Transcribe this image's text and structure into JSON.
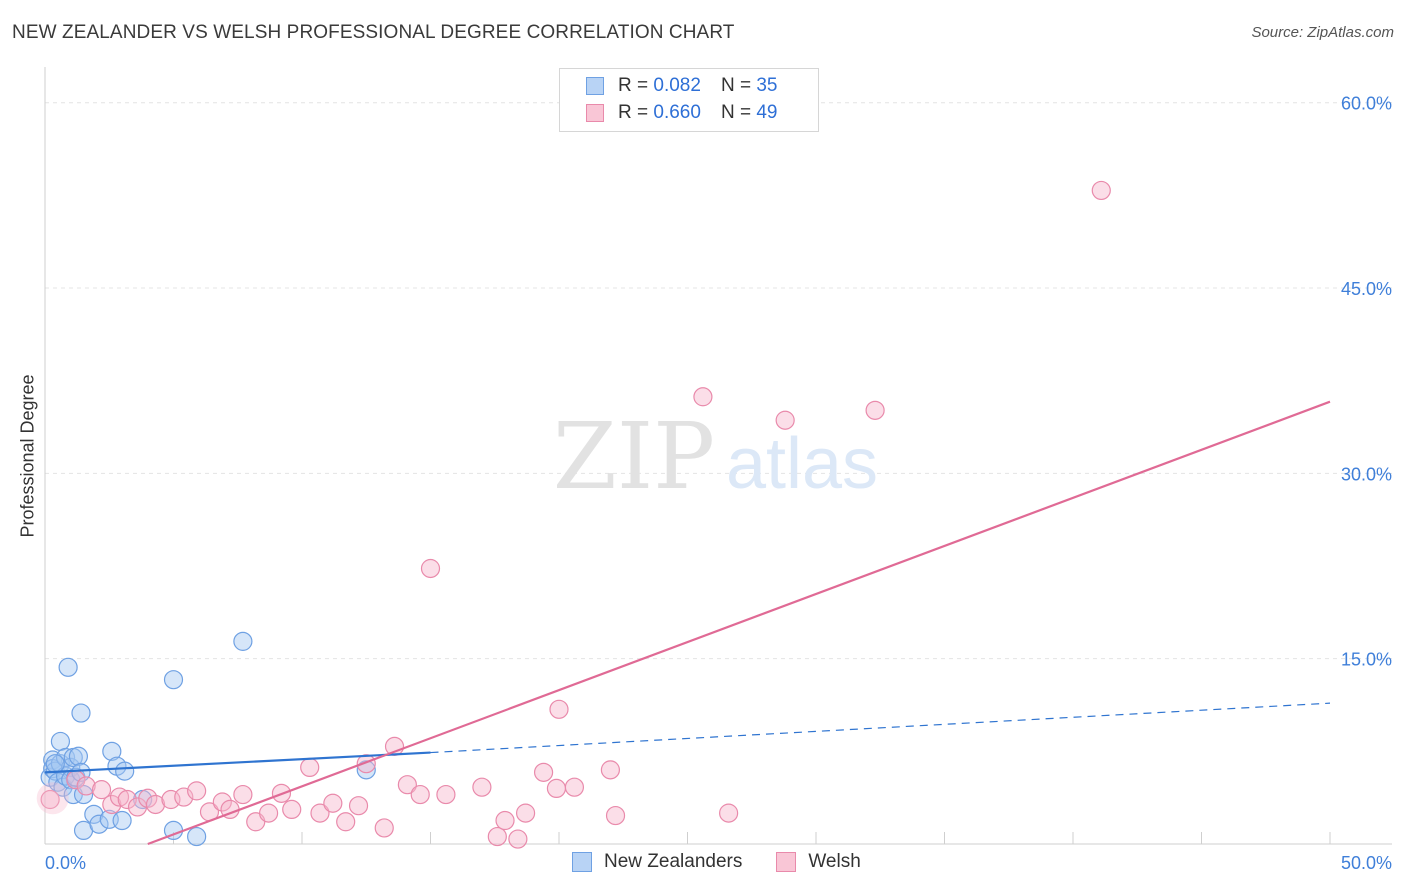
{
  "header": {
    "title": "NEW ZEALANDER VS WELSH PROFESSIONAL DEGREE CORRELATION CHART",
    "source": "Source: ZipAtlas.com"
  },
  "watermark": {
    "zip": "ZIP",
    "atlas": "atlas"
  },
  "legend": {
    "r_label": "R =",
    "n_label": "N =",
    "entries": [
      {
        "r": "0.082",
        "n": "35",
        "fill": "#b8d3f5",
        "stroke": "#6fa1e3"
      },
      {
        "r": "0.660",
        "n": "49",
        "fill": "#f9c6d6",
        "stroke": "#e98aab"
      }
    ]
  },
  "bottom_legend": [
    {
      "label": "New Zealanders",
      "fill": "#b8d3f5",
      "stroke": "#6fa1e3"
    },
    {
      "label": "Welsh",
      "fill": "#f9c6d6",
      "stroke": "#e98aab"
    }
  ],
  "chart_data": {
    "type": "scatter",
    "title": "NEW ZEALANDER VS WELSH PROFESSIONAL DEGREE CORRELATION CHART",
    "xlabel": "",
    "ylabel": "Professional Degree",
    "xlim": [
      0,
      50
    ],
    "ylim": [
      0,
      62
    ],
    "x_tick_labels": [
      "0.0%",
      "50.0%"
    ],
    "y_ticks": [
      15,
      30,
      45,
      60
    ],
    "y_tick_labels": [
      "15.0%",
      "30.0%",
      "45.0%",
      "60.0%"
    ],
    "grid": true,
    "series": [
      {
        "name": "New Zealanders",
        "color": "#4f8fe0",
        "fill": "rgba(164,199,242,0.45)",
        "stroke": "#6fa1e3",
        "trend_line_color": "#2f74d0",
        "trend": {
          "x1": 0,
          "y1": 5.8,
          "x2": 15,
          "y2": 7.4,
          "x_dash_end": 50,
          "y_dash_end": 11.4
        },
        "points": [
          [
            0.2,
            5.4
          ],
          [
            0.3,
            6.8
          ],
          [
            0.3,
            6.1
          ],
          [
            0.4,
            5.9
          ],
          [
            0.5,
            5.0
          ],
          [
            0.6,
            6.5
          ],
          [
            0.6,
            8.3
          ],
          [
            0.7,
            4.6
          ],
          [
            0.8,
            5.5
          ],
          [
            0.8,
            7.0
          ],
          [
            0.9,
            14.3
          ],
          [
            1.0,
            6.2
          ],
          [
            1.0,
            5.2
          ],
          [
            1.1,
            7.0
          ],
          [
            1.1,
            4.0
          ],
          [
            1.2,
            5.4
          ],
          [
            1.3,
            7.1
          ],
          [
            1.4,
            5.8
          ],
          [
            1.4,
            10.6
          ],
          [
            1.5,
            4.0
          ],
          [
            1.5,
            1.1
          ],
          [
            1.9,
            2.4
          ],
          [
            2.1,
            1.6
          ],
          [
            2.5,
            2.0
          ],
          [
            2.6,
            7.5
          ],
          [
            2.8,
            6.3
          ],
          [
            3.0,
            1.9
          ],
          [
            3.1,
            5.9
          ],
          [
            3.8,
            3.6
          ],
          [
            5.0,
            1.1
          ],
          [
            5.0,
            13.3
          ],
          [
            5.9,
            0.6
          ],
          [
            7.7,
            16.4
          ],
          [
            12.5,
            6.0
          ],
          [
            0.4,
            6.5
          ]
        ]
      },
      {
        "name": "Welsh",
        "color": "#e06a95",
        "fill": "rgba(247,182,204,0.45)",
        "stroke": "#e98aab",
        "trend_line_color": "#e06a95",
        "trend": {
          "x1": 4,
          "y1": 0,
          "x2": 50,
          "y2": 35.8
        },
        "points": [
          [
            0.2,
            3.6
          ],
          [
            1.2,
            5.2
          ],
          [
            1.6,
            4.7
          ],
          [
            2.2,
            4.4
          ],
          [
            2.6,
            3.2
          ],
          [
            2.9,
            3.8
          ],
          [
            3.2,
            3.6
          ],
          [
            3.6,
            3.0
          ],
          [
            4.0,
            3.7
          ],
          [
            4.3,
            3.2
          ],
          [
            4.9,
            3.6
          ],
          [
            5.4,
            3.8
          ],
          [
            5.9,
            4.3
          ],
          [
            6.4,
            2.6
          ],
          [
            6.9,
            3.4
          ],
          [
            7.2,
            2.8
          ],
          [
            7.7,
            4.0
          ],
          [
            8.2,
            1.8
          ],
          [
            8.7,
            2.5
          ],
          [
            9.2,
            4.1
          ],
          [
            9.6,
            2.8
          ],
          [
            10.3,
            6.2
          ],
          [
            10.7,
            2.5
          ],
          [
            11.2,
            3.3
          ],
          [
            11.7,
            1.8
          ],
          [
            12.2,
            3.1
          ],
          [
            12.5,
            6.5
          ],
          [
            13.2,
            1.3
          ],
          [
            13.6,
            7.9
          ],
          [
            14.1,
            4.8
          ],
          [
            14.6,
            4.0
          ],
          [
            15.0,
            22.3
          ],
          [
            15.6,
            4.0
          ],
          [
            17.0,
            4.6
          ],
          [
            17.6,
            0.6
          ],
          [
            17.9,
            1.9
          ],
          [
            18.4,
            0.4
          ],
          [
            18.7,
            2.5
          ],
          [
            19.4,
            5.8
          ],
          [
            19.9,
            4.5
          ],
          [
            20.0,
            10.9
          ],
          [
            20.6,
            4.6
          ],
          [
            22.0,
            6.0
          ],
          [
            22.2,
            2.3
          ],
          [
            25.6,
            36.2
          ],
          [
            26.6,
            2.5
          ],
          [
            28.8,
            34.3
          ],
          [
            32.3,
            35.1
          ],
          [
            41.1,
            52.9
          ]
        ]
      }
    ]
  }
}
